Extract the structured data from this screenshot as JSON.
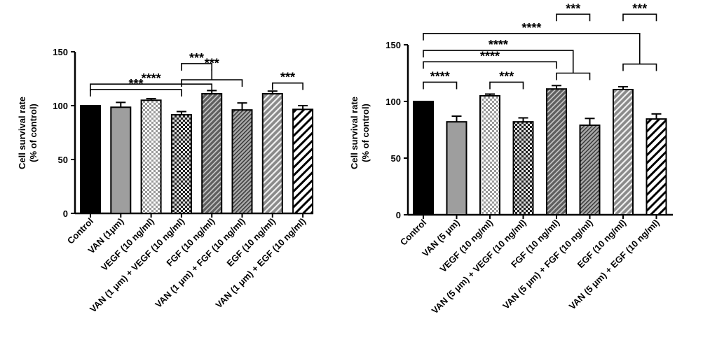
{
  "chart_data": [
    {
      "type": "bar",
      "title": "",
      "ylabel_line1": "Cell survival rate",
      "ylabel_line2": "(% of control)",
      "ylim": [
        0,
        150
      ],
      "yticks": [
        0,
        50,
        100,
        150
      ],
      "categories": [
        "Control",
        "VAN (1μm)",
        "VEGF (10 ng/ml)",
        "VAN (1 μm) + VEGF (10 ng/ml)",
        "FGF (10 ng/ml)",
        "VAN (1 μm) + FGF (10 ng/ml)",
        "EGF (10 ng/ml)",
        "VAN (1 μm) + EGF (10 ng/ml)"
      ],
      "values": [
        100,
        98.5,
        105,
        91.5,
        111,
        96,
        111,
        96.5
      ],
      "errors": [
        0,
        4.5,
        1.5,
        3,
        3,
        6.5,
        2.5,
        3.5
      ],
      "patterns": [
        "solid-black",
        "solid-gray",
        "check-small-light",
        "check-dark",
        "diag-dark",
        "diag-light",
        "diag-mid",
        "diag-white"
      ],
      "significance": [
        {
          "label": "***",
          "kind": "bracket",
          "from": 3,
          "to": 3.999,
          "y": 139
        },
        {
          "label": "****",
          "kind": "bracket",
          "from": 0,
          "to": 4,
          "y": 120
        },
        {
          "label": "***",
          "kind": "bracket",
          "from": 0,
          "to": 3,
          "y": 115
        },
        {
          "label": "***",
          "kind": "group",
          "groupFrom": 3,
          "groupTo": 5,
          "groupY": 124,
          "target": 4,
          "y": 134
        },
        {
          "label": "***",
          "kind": "bracket",
          "from": 6,
          "to": 7,
          "y": 121
        }
      ]
    },
    {
      "type": "bar",
      "title": "",
      "ylabel_line1": "Cell survival rate",
      "ylabel_line2": "(% of control)",
      "ylim": [
        0,
        150
      ],
      "yticks": [
        0,
        50,
        100,
        150
      ],
      "categories": [
        "Control",
        "VAN (5 μm)",
        "VEGF (10 ng/ml)",
        "VAN (5 μm) + VEGF (10 ng/ml)",
        "FGF (10 ng/ml)",
        "VAN (5 μm) + FGF (10 ng/ml)",
        "EGF (10 ng/ml)",
        "VAN (5 μm) + EGF (10 ng/ml)"
      ],
      "values": [
        100,
        82,
        105,
        82,
        111,
        79,
        110.5,
        84.5
      ],
      "errors": [
        0,
        5,
        1.5,
        3.5,
        3,
        6,
        2.5,
        4.5
      ],
      "patterns": [
        "solid-black",
        "solid-gray",
        "check-small-light",
        "check-dark",
        "diag-dark",
        "diag-light",
        "diag-mid",
        "diag-white"
      ],
      "significance": [
        {
          "label": "****",
          "kind": "bracket",
          "from": 0,
          "to": 1,
          "y": 117
        },
        {
          "label": "***",
          "kind": "bracket",
          "from": 2,
          "to": 3,
          "y": 117
        },
        {
          "label": "****",
          "kind": "group",
          "groupFrom": 4,
          "groupTo": 5,
          "groupY": 125,
          "target": 0,
          "y": 145
        },
        {
          "label": "****",
          "kind": "group",
          "groupFrom": 6,
          "groupTo": 7,
          "groupY": 133,
          "target": 0,
          "y": 160
        },
        {
          "label": "****",
          "kind": "bracket",
          "from": 0,
          "to": 3.999,
          "y": 135
        },
        {
          "label": "***",
          "kind": "bracket",
          "from": 4,
          "to": 5,
          "y": 177
        },
        {
          "label": "***",
          "kind": "bracket",
          "from": 6,
          "to": 7,
          "y": 177
        }
      ]
    }
  ]
}
